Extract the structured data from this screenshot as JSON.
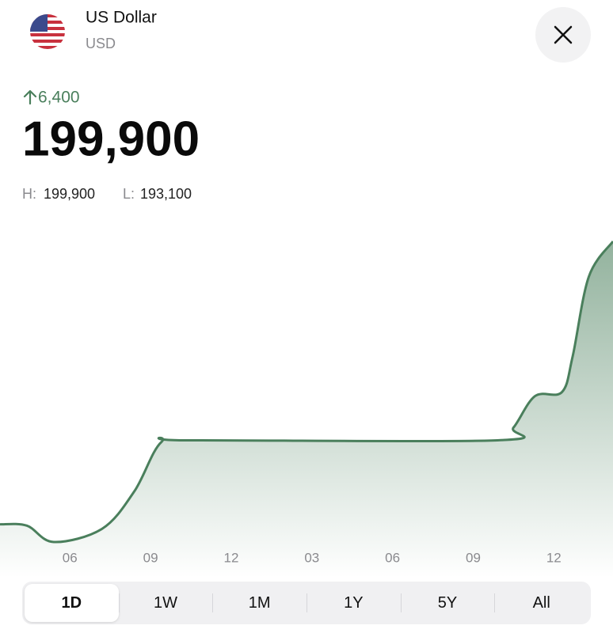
{
  "header": {
    "title": "US Dollar",
    "code": "USD"
  },
  "quote": {
    "change": "6,400",
    "price": "199,900",
    "high_label": "H:",
    "high": "199,900",
    "low_label": "L:",
    "low": "193,100"
  },
  "chart_data": {
    "type": "area",
    "x": [
      3.4,
      4.4,
      5.4,
      7.2,
      8.4,
      9.4,
      10.5,
      21.9,
      22.5,
      23.3,
      24.3,
      24.7,
      25.3,
      26.2
    ],
    "values": [
      193500,
      193470,
      193100,
      193400,
      194250,
      195360,
      195400,
      195400,
      195690,
      196400,
      196490,
      197300,
      199100,
      199900
    ],
    "xlim": [
      3.4,
      26.2
    ],
    "xticks": [
      {
        "value": 6,
        "label": "06"
      },
      {
        "value": 9,
        "label": "09"
      },
      {
        "value": 12,
        "label": "12"
      },
      {
        "value": 15,
        "label": "03"
      },
      {
        "value": 18,
        "label": "06"
      },
      {
        "value": 21,
        "label": "09"
      },
      {
        "value": 24,
        "label": "12"
      }
    ],
    "color": "#4a7f5c"
  },
  "tabs": {
    "items": [
      "1D",
      "1W",
      "1M",
      "1Y",
      "5Y",
      "All"
    ],
    "selected": 0
  }
}
